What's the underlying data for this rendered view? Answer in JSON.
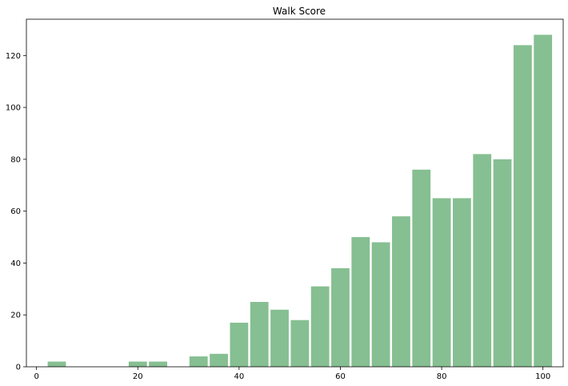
{
  "chart_data": {
    "type": "bar",
    "title": "Walk Score",
    "xlabel": "",
    "ylabel": "",
    "xlim": [
      -2,
      104
    ],
    "ylim": [
      0,
      134
    ],
    "bin_width": 4,
    "bar_fraction": 0.9,
    "bar_color": "#86bf91",
    "grid": false,
    "x_ticks": [
      0,
      20,
      40,
      60,
      80,
      100
    ],
    "y_ticks": [
      0,
      20,
      40,
      60,
      80,
      100,
      120
    ],
    "bins": [
      {
        "start": 2,
        "value": 2
      },
      {
        "start": 6,
        "value": 0
      },
      {
        "start": 10,
        "value": 0
      },
      {
        "start": 14,
        "value": 0
      },
      {
        "start": 18,
        "value": 2
      },
      {
        "start": 22,
        "value": 2
      },
      {
        "start": 26,
        "value": 0
      },
      {
        "start": 30,
        "value": 4
      },
      {
        "start": 34,
        "value": 5
      },
      {
        "start": 38,
        "value": 17
      },
      {
        "start": 42,
        "value": 25
      },
      {
        "start": 46,
        "value": 22
      },
      {
        "start": 50,
        "value": 18
      },
      {
        "start": 54,
        "value": 31
      },
      {
        "start": 58,
        "value": 38
      },
      {
        "start": 62,
        "value": 50
      },
      {
        "start": 66,
        "value": 48
      },
      {
        "start": 70,
        "value": 58
      },
      {
        "start": 74,
        "value": 76
      },
      {
        "start": 78,
        "value": 65
      },
      {
        "start": 82,
        "value": 65
      },
      {
        "start": 86,
        "value": 82
      },
      {
        "start": 90,
        "value": 80
      },
      {
        "start": 94,
        "value": 124
      },
      {
        "start": 98,
        "value": 128
      }
    ]
  }
}
